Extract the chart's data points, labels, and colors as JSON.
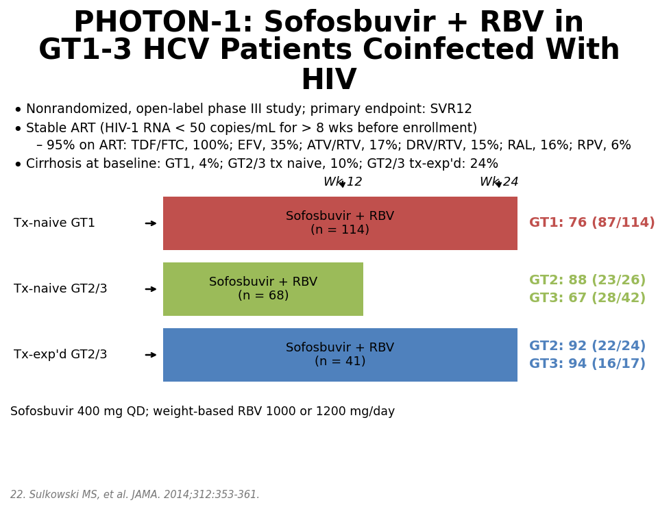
{
  "title_line1": "PHOTON-1: Sofosbuvir + RBV in",
  "title_line2": "GT1-3 HCV Patients Coinfected With",
  "title_line3": "HIV",
  "bullet1": "Nonrandomized, open-label phase III study; primary endpoint: SVR12",
  "bullet2": "Stable ART (HIV-1 RNA < 50 copies/mL for > 8 wks before enrollment)",
  "sub_bullet": "95% on ART: TDF/FTC, 100%; EFV, 35%; ATV/RTV, 17%; DRV/RTV, 15%; RAL, 16%; RPV, 6%",
  "bullet3": "Cirrhosis at baseline: GT1, 4%; GT2/3 tx naive, 10%; GT2/3 tx-exp'd: 24%",
  "wk12_label": "Wk 12",
  "wk24_label": "Wk 24",
  "row1_label": "Tx-naive GT1",
  "row2_label": "Tx-naive GT2/3",
  "row3_label": "Tx-exp'd GT2/3",
  "row1_text_line1": "Sofosbuvir + RBV",
  "row1_text_line2": "(n = 114)",
  "row2_text_line1": "Sofosbuvir + RBV",
  "row2_text_line2": "(n = 68)",
  "row3_text_line1": "Sofosbuvir + RBV",
  "row3_text_line2": "(n = 41)",
  "row1_color": "#C0504D",
  "row2_color": "#9BBB59",
  "row3_color": "#4F81BD",
  "row1_result": "GT1: 76 (87/114)",
  "row2_result_line1": "GT2: 88 (23/26)",
  "row2_result_line2": "GT3: 67 (28/42)",
  "row3_result_line1": "GT2: 92 (22/24)",
  "row3_result_line2": "GT3: 94 (16/17)",
  "row1_result_color": "#C0504D",
  "row2_result_color": "#9BBB59",
  "row3_result_color": "#4F81BD",
  "footnote1": "Sofosbuvir 400 mg QD; weight-based RBV 1000 or 1200 mg/day",
  "footnote2": "22. Sulkowski MS, et al. JAMA. 2014;312:353-361.",
  "bg_color": "#FFFFFF"
}
